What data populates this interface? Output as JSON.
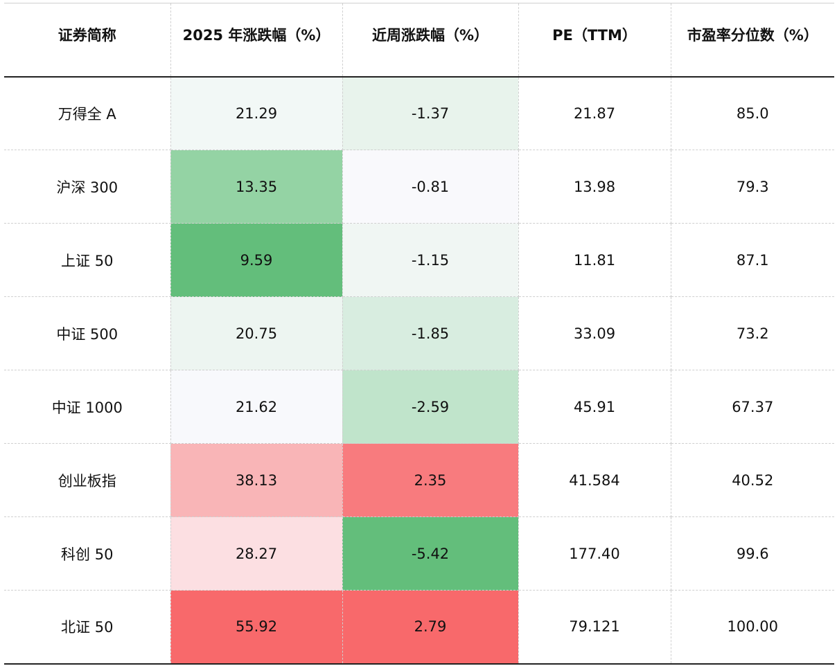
{
  "table": {
    "headers": [
      "证券简称",
      "2025 年涨跌幅（%）",
      "近周涨跌幅（%）",
      "PE（TTM）",
      "市盈率分位数（%）"
    ],
    "rows": [
      {
        "name": "万得全 A",
        "ytd": "21.29",
        "week": "-1.37",
        "pe": "21.87",
        "pct": "85.0",
        "ytd_color": "#f2f8f6",
        "week_color": "#e8f3ec"
      },
      {
        "name": "沪深 300",
        "ytd": "13.35",
        "week": "-0.81",
        "pe": "13.98",
        "pct": "79.3",
        "ytd_color": "#94d3a4",
        "week_color": "#f9f9fc"
      },
      {
        "name": "上证 50",
        "ytd": "9.59",
        "week": "-1.15",
        "pe": "11.81",
        "pct": "87.1",
        "ytd_color": "#63be7b",
        "week_color": "#f0f6f3"
      },
      {
        "name": "中证 500",
        "ytd": "20.75",
        "week": "-1.85",
        "pe": "33.09",
        "pct": "73.2",
        "ytd_color": "#edf5f1",
        "week_color": "#d8ede0"
      },
      {
        "name": "中证 1000",
        "ytd": "21.62",
        "week": "-2.59",
        "pe": "45.91",
        "pct": "67.37",
        "ytd_color": "#f8f9fc",
        "week_color": "#c0e4cb"
      },
      {
        "name": "创业板指",
        "ytd": "38.13",
        "week": "2.35",
        "pe": "41.584",
        "pct": "40.52",
        "ytd_color": "#f9b5b7",
        "week_color": "#f87b7e"
      },
      {
        "name": "科创 50",
        "ytd": "28.27",
        "week": "-5.42",
        "pe": "177.40",
        "pct": "99.6",
        "ytd_color": "#fcdfe2",
        "week_color": "#63be7b"
      },
      {
        "name": "北证 50",
        "ytd": "55.92",
        "week": "2.79",
        "pe": "79.121",
        "pct": "100.00",
        "ytd_color": "#f8696b",
        "week_color": "#f8696b"
      }
    ]
  }
}
